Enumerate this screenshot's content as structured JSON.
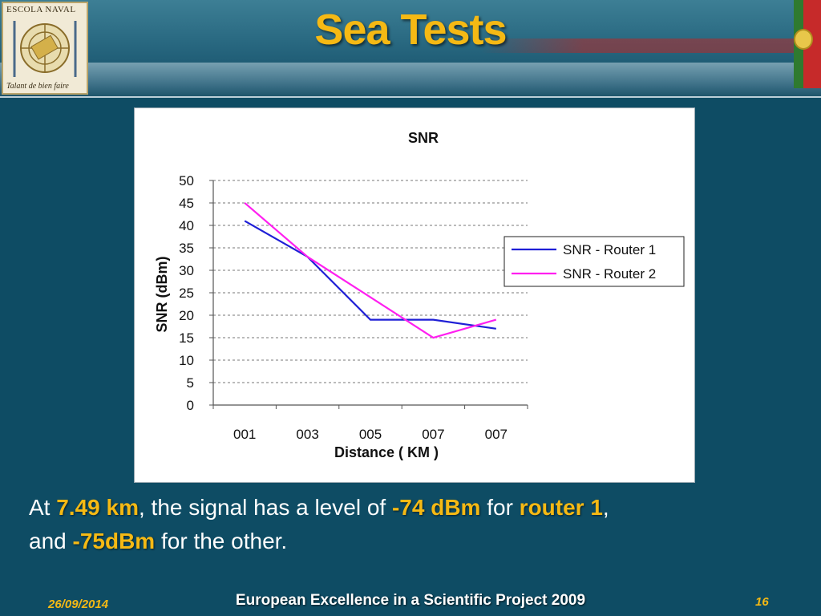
{
  "slide": {
    "title": "Sea Tests",
    "logo": {
      "top_text": "ESCOLA NAVAL",
      "bottom_text": "Talant de bien faire"
    },
    "caption": {
      "p1": "At ",
      "h1": "7.49 km",
      "p2": ", the signal has a level of ",
      "h2": "-74 dBm",
      "p3": " for ",
      "h3": "router 1",
      "p4": ",",
      "p5": "and ",
      "h4": "-75dBm",
      "p6": " for the other."
    },
    "footer": {
      "date": "26/09/2014",
      "center": "European Excellence in a Scientific Project 2009",
      "page": "16"
    },
    "colors": {
      "accent": "#f5b914",
      "background": "#0e4c64"
    }
  },
  "chart_data": {
    "type": "line",
    "title": "SNR",
    "xlabel": "Distance ( KM )",
    "ylabel": "SNR  (dBm)",
    "categories": [
      "001",
      "003",
      "005",
      "007",
      "007"
    ],
    "ylim": [
      0,
      50
    ],
    "yticks": [
      0,
      5,
      10,
      15,
      20,
      25,
      30,
      35,
      40,
      45,
      50
    ],
    "grid": true,
    "legend_position": "right",
    "series": [
      {
        "name": "SNR - Router  1",
        "values": [
          41,
          33,
          19,
          19,
          17
        ],
        "color": "#1f1fd6"
      },
      {
        "name": "SNR - Router  2",
        "values": [
          45,
          33,
          24,
          15,
          19
        ],
        "color": "#ff1ff0"
      }
    ]
  }
}
